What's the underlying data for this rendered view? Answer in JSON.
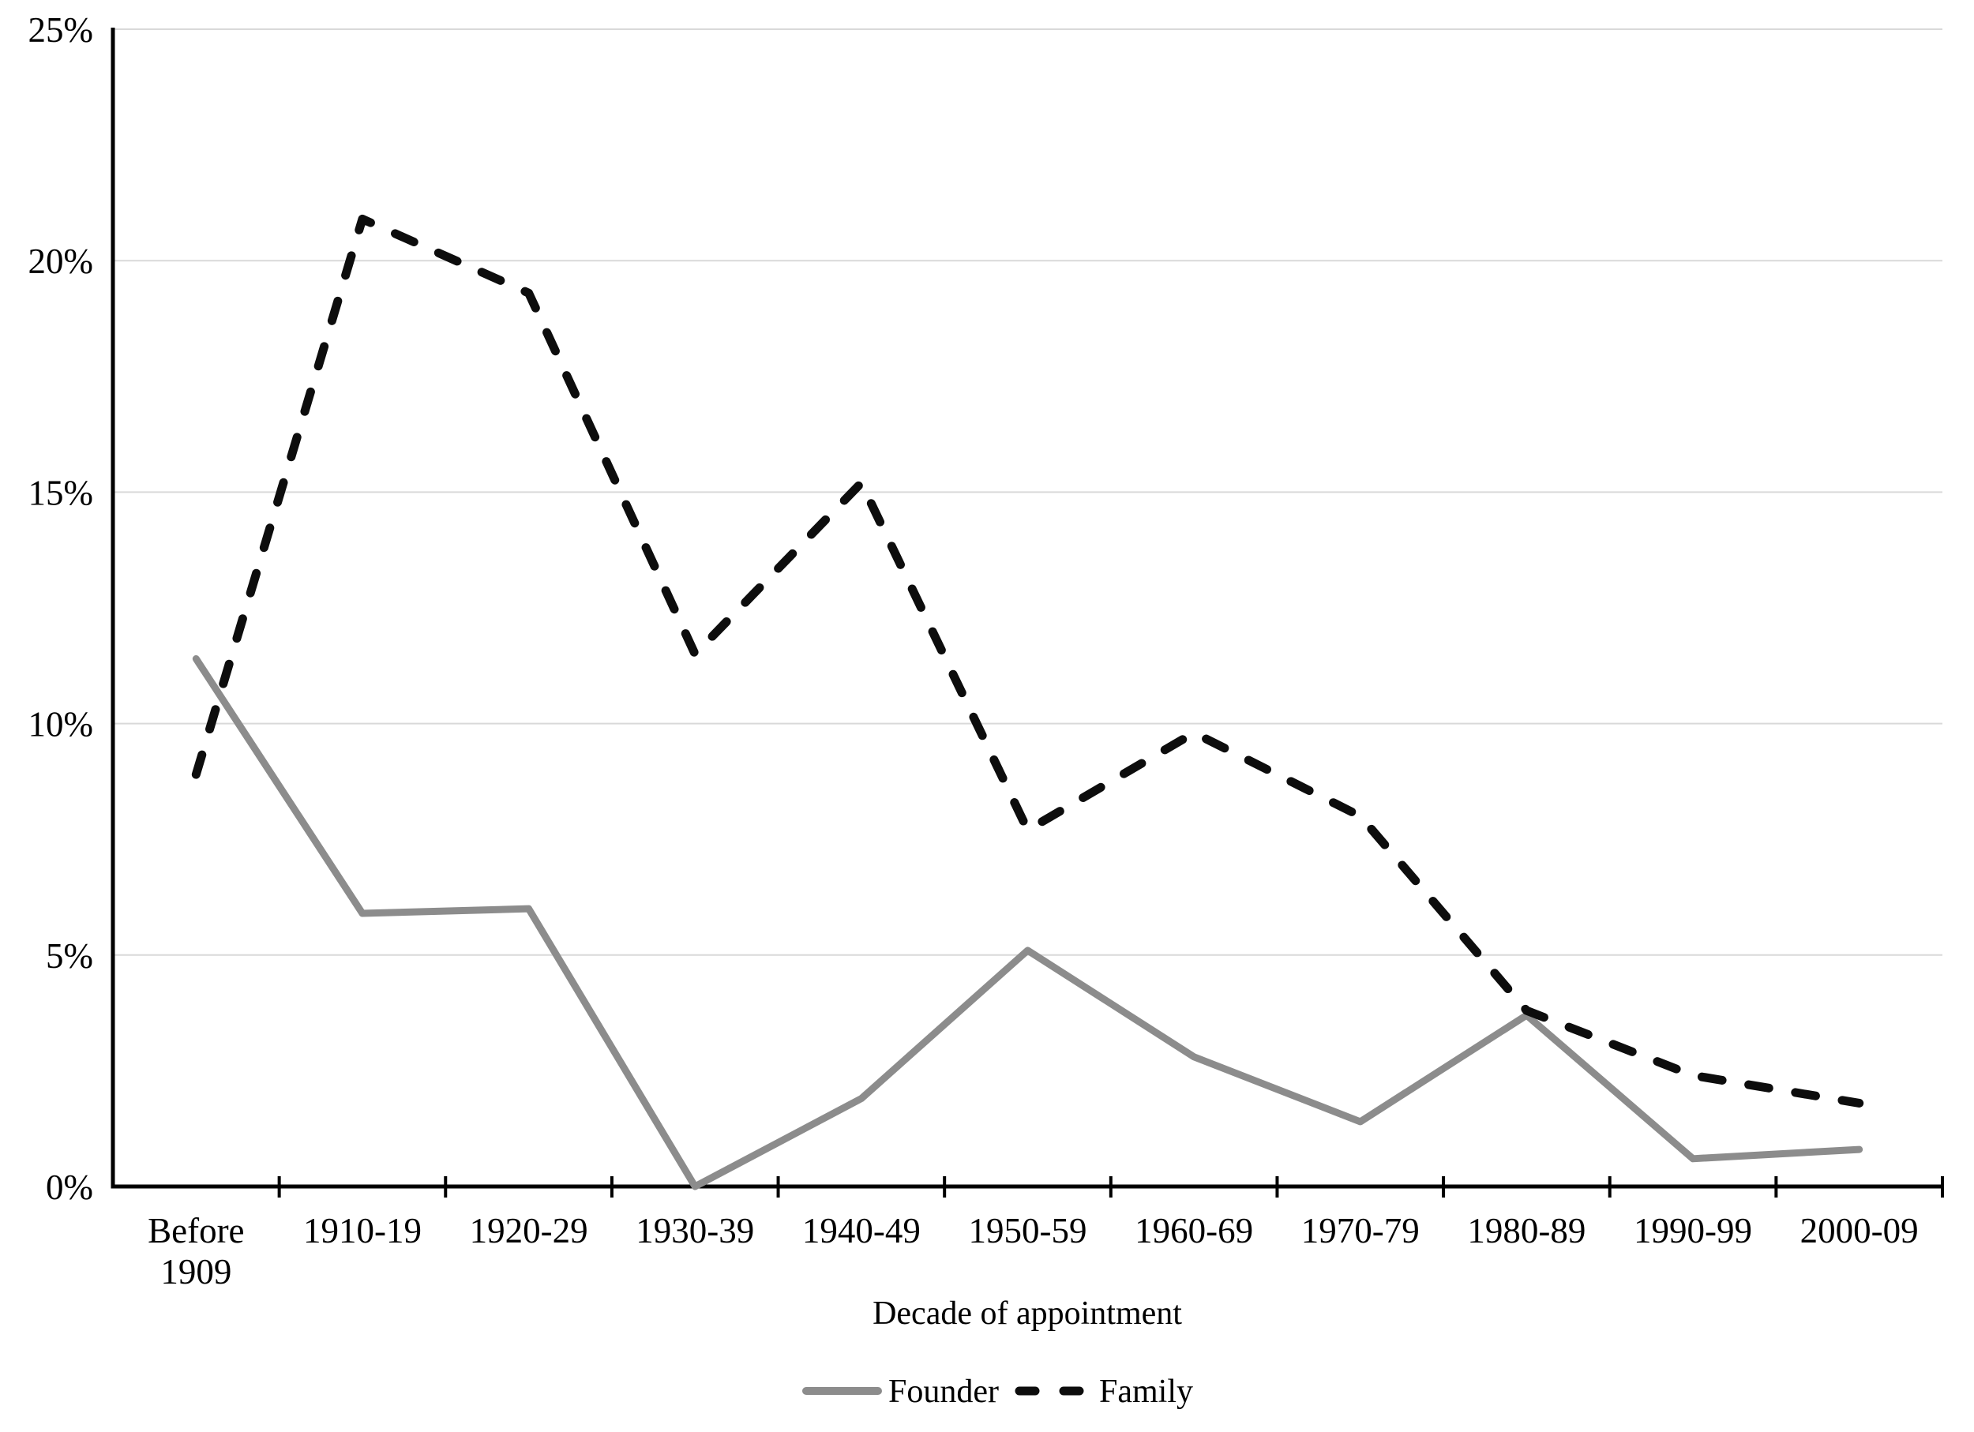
{
  "chart_data": {
    "type": "line",
    "title": "",
    "xlabel": "Decade of appointment",
    "ylabel": "",
    "categories": [
      "Before 1909",
      "1910-19",
      "1920-29",
      "1930-39",
      "1940-49",
      "1950-59",
      "1960-69",
      "1970-79",
      "1980-89",
      "1990-99",
      "2000-09"
    ],
    "series": [
      {
        "name": "Founder",
        "color": "#8c8c8c",
        "style": "solid",
        "values": [
          11.4,
          5.9,
          6.0,
          0.0,
          1.9,
          5.1,
          2.8,
          1.4,
          3.7,
          0.6,
          0.8
        ]
      },
      {
        "name": "Family",
        "color": "#0d0d0d",
        "style": "dashed",
        "values": [
          8.9,
          20.9,
          19.3,
          11.5,
          15.2,
          7.7,
          9.8,
          8.0,
          3.8,
          2.4,
          1.8
        ]
      }
    ],
    "ylim": [
      0,
      25
    ],
    "yticks": [
      0,
      5,
      10,
      15,
      20,
      25
    ],
    "ytick_suffix": "%",
    "grid": "horizontal",
    "gridline_color": "#d9d9d9",
    "axis_color": "#000000",
    "legend_position": "bottom"
  }
}
